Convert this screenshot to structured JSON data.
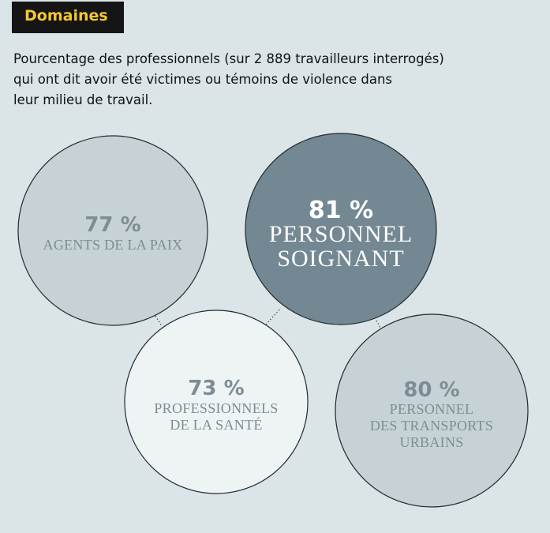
{
  "tag": "Domaines",
  "subtitle_lines": [
    "Pourcentage des professionnels (sur 2 889 travailleurs interrogés)",
    "qui ont dit avoir été victimes ou témoins de violence dans",
    "leur milieu de travail."
  ],
  "chart_data": {
    "type": "bubble",
    "title": "Domaines",
    "subtitle": "Pourcentage des professionnels (sur 2 889 travailleurs interrogés) qui ont dit avoir été victimes ou témoins de violence dans leur milieu de travail.",
    "unit": "%",
    "items": [
      {
        "key": "agents",
        "value": 77,
        "value_label": "77 %",
        "label_lines": [
          "AGENTS DE LA PAIX"
        ],
        "fill": "#c7d2d6",
        "text_color": "#7d8c95"
      },
      {
        "key": "soignant",
        "value": 81,
        "value_label": "81 %",
        "label_lines": [
          "PERSONNEL",
          "SOIGNANT"
        ],
        "fill": "#738893",
        "text_color": "#ffffff"
      },
      {
        "key": "sante",
        "value": 73,
        "value_label": "73 %",
        "label_lines": [
          "PROFESSIONNELS",
          "DE LA SANTÉ"
        ],
        "fill": "#eef3f4",
        "text_color": "#7d8c95"
      },
      {
        "key": "transports",
        "value": 80,
        "value_label": "80 %",
        "label_lines": [
          "PERSONNEL",
          "DES TRANSPORTS",
          "URBAINS"
        ],
        "fill": "#c7d2d6",
        "text_color": "#7d8c95"
      }
    ]
  }
}
